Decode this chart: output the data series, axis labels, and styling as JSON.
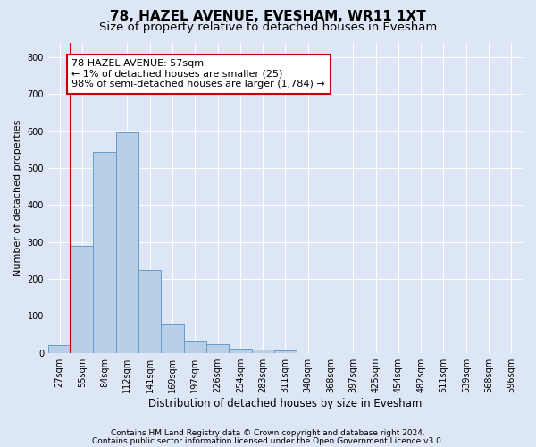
{
  "title1": "78, HAZEL AVENUE, EVESHAM, WR11 1XT",
  "title2": "Size of property relative to detached houses in Evesham",
  "xlabel": "Distribution of detached houses by size in Evesham",
  "ylabel": "Number of detached properties",
  "categories": [
    "27sqm",
    "55sqm",
    "84sqm",
    "112sqm",
    "141sqm",
    "169sqm",
    "197sqm",
    "226sqm",
    "254sqm",
    "283sqm",
    "311sqm",
    "340sqm",
    "368sqm",
    "397sqm",
    "425sqm",
    "454sqm",
    "482sqm",
    "511sqm",
    "539sqm",
    "568sqm",
    "596sqm"
  ],
  "values": [
    22,
    290,
    543,
    597,
    224,
    80,
    33,
    23,
    12,
    10,
    7,
    0,
    0,
    0,
    0,
    0,
    0,
    0,
    0,
    0,
    0
  ],
  "bar_color": "#b8cfe8",
  "bar_edge_color": "#6699cc",
  "vline_color": "#cc0000",
  "annotation_line1": "78 HAZEL AVENUE: 57sqm",
  "annotation_line2": "← 1% of detached houses are smaller (25)",
  "annotation_line3": "98% of semi-detached houses are larger (1,784) →",
  "annotation_box_color": "#ffffff",
  "annotation_box_edge_color": "#cc0000",
  "ylim": [
    0,
    840
  ],
  "yticks": [
    0,
    100,
    200,
    300,
    400,
    500,
    600,
    700,
    800
  ],
  "background_color": "#dce6f5",
  "grid_color": "#ffffff",
  "footer_line1": "Contains HM Land Registry data © Crown copyright and database right 2024.",
  "footer_line2": "Contains public sector information licensed under the Open Government Licence v3.0.",
  "title1_fontsize": 11,
  "title2_fontsize": 9.5,
  "ylabel_fontsize": 8,
  "xlabel_fontsize": 8.5,
  "tick_fontsize": 7,
  "annot_fontsize": 8,
  "footer_fontsize": 6.5
}
